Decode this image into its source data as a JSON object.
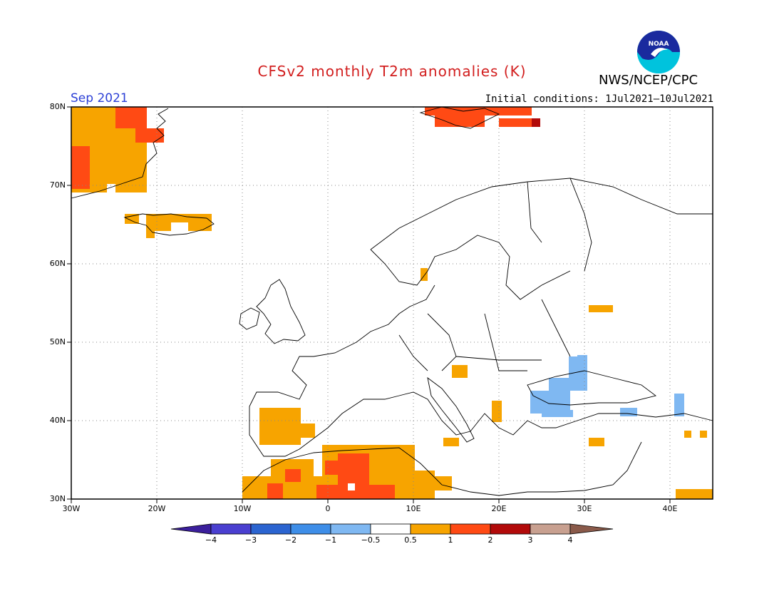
{
  "title": "CFSv2 monthly T2m anomalies (K)",
  "month": "Sep 2021",
  "initial_conditions": "Initial conditions: 1Jul2021—10Jul2021",
  "agency": "NWS/NCEP/CPC",
  "logo_text": "NOAA",
  "map": {
    "lon_range": [
      -30,
      45
    ],
    "lat_range": [
      30,
      80
    ],
    "lat_labels": [
      "80N",
      "70N",
      "60N",
      "50N",
      "40N",
      "30N"
    ],
    "lon_labels": [
      "30W",
      "20W",
      "10W",
      "0",
      "10E",
      "20E",
      "30E",
      "40E"
    ],
    "gridlines": true
  },
  "colorbar": {
    "labels": [
      "−4",
      "−3",
      "−2",
      "−1",
      "−0.5",
      "0.5",
      "1",
      "2",
      "3",
      "4"
    ],
    "colors": {
      "lt_-4": "#3b1f9c",
      "-4_-3": "#4a3fd0",
      "-3_-2": "#2b64d0",
      "-2_-1": "#3e8ee8",
      "-1_-0.5": "#7fb8f2",
      "-0.5_0.5": "#ffffff",
      "0.5_1": "#f7a400",
      "1_2": "#ff4a14",
      "2_3": "#b20a0a",
      "3_4": "#c8a090",
      "gt_4": "#8a5a4a"
    }
  },
  "anomaly_regions": [
    {
      "name": "Greenland east coast",
      "level": "1 to 2 and 0.5 to 1"
    },
    {
      "name": "Svalbard",
      "level": "1 to 2"
    },
    {
      "name": "Iceland",
      "level": "0.5 to 1"
    },
    {
      "name": "Iberian Peninsula",
      "level": "0.5 to 1"
    },
    {
      "name": "North Africa (Morocco, Algeria, Tunisia)",
      "level": "0.5 to 2"
    },
    {
      "name": "Black Sea region",
      "level": "-1 to -0.5"
    },
    {
      "name": "Western Russia",
      "level": "0.5 to 1"
    }
  ]
}
